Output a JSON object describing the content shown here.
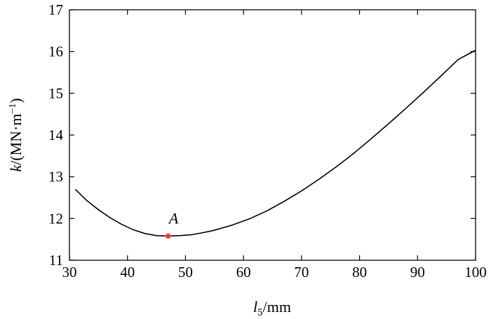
{
  "chart_data": {
    "type": "line",
    "xlabel": {
      "var": "l",
      "sub": "5",
      "unit": "/mm"
    },
    "ylabel": {
      "var": "k",
      "unit": "/(MN·m",
      "sup": "−1",
      "close": ")"
    },
    "xlim": [
      30,
      100
    ],
    "ylim": [
      11,
      17
    ],
    "xticks": [
      30,
      40,
      50,
      60,
      70,
      80,
      90,
      100
    ],
    "yticks": [
      11,
      12,
      13,
      14,
      15,
      16,
      17
    ],
    "grid": false,
    "series": [
      {
        "color": "#000000",
        "x": [
          31,
          33,
          35,
          37,
          39,
          41,
          43,
          45,
          47,
          49,
          51,
          53,
          55,
          58,
          61,
          64,
          67,
          70,
          73,
          76,
          79,
          82,
          85,
          88,
          91,
          94,
          97,
          100
        ],
        "y": [
          12.7,
          12.43,
          12.21,
          12.02,
          11.86,
          11.73,
          11.64,
          11.59,
          11.58,
          11.59,
          11.61,
          11.66,
          11.72,
          11.84,
          11.99,
          12.18,
          12.41,
          12.66,
          12.94,
          13.24,
          13.56,
          13.91,
          14.27,
          14.64,
          15.02,
          15.41,
          15.81,
          16.03
        ]
      }
    ],
    "annotations": [
      {
        "label": "A",
        "x": 47,
        "y": 11.58,
        "marker_color": "#e8312f"
      }
    ]
  }
}
